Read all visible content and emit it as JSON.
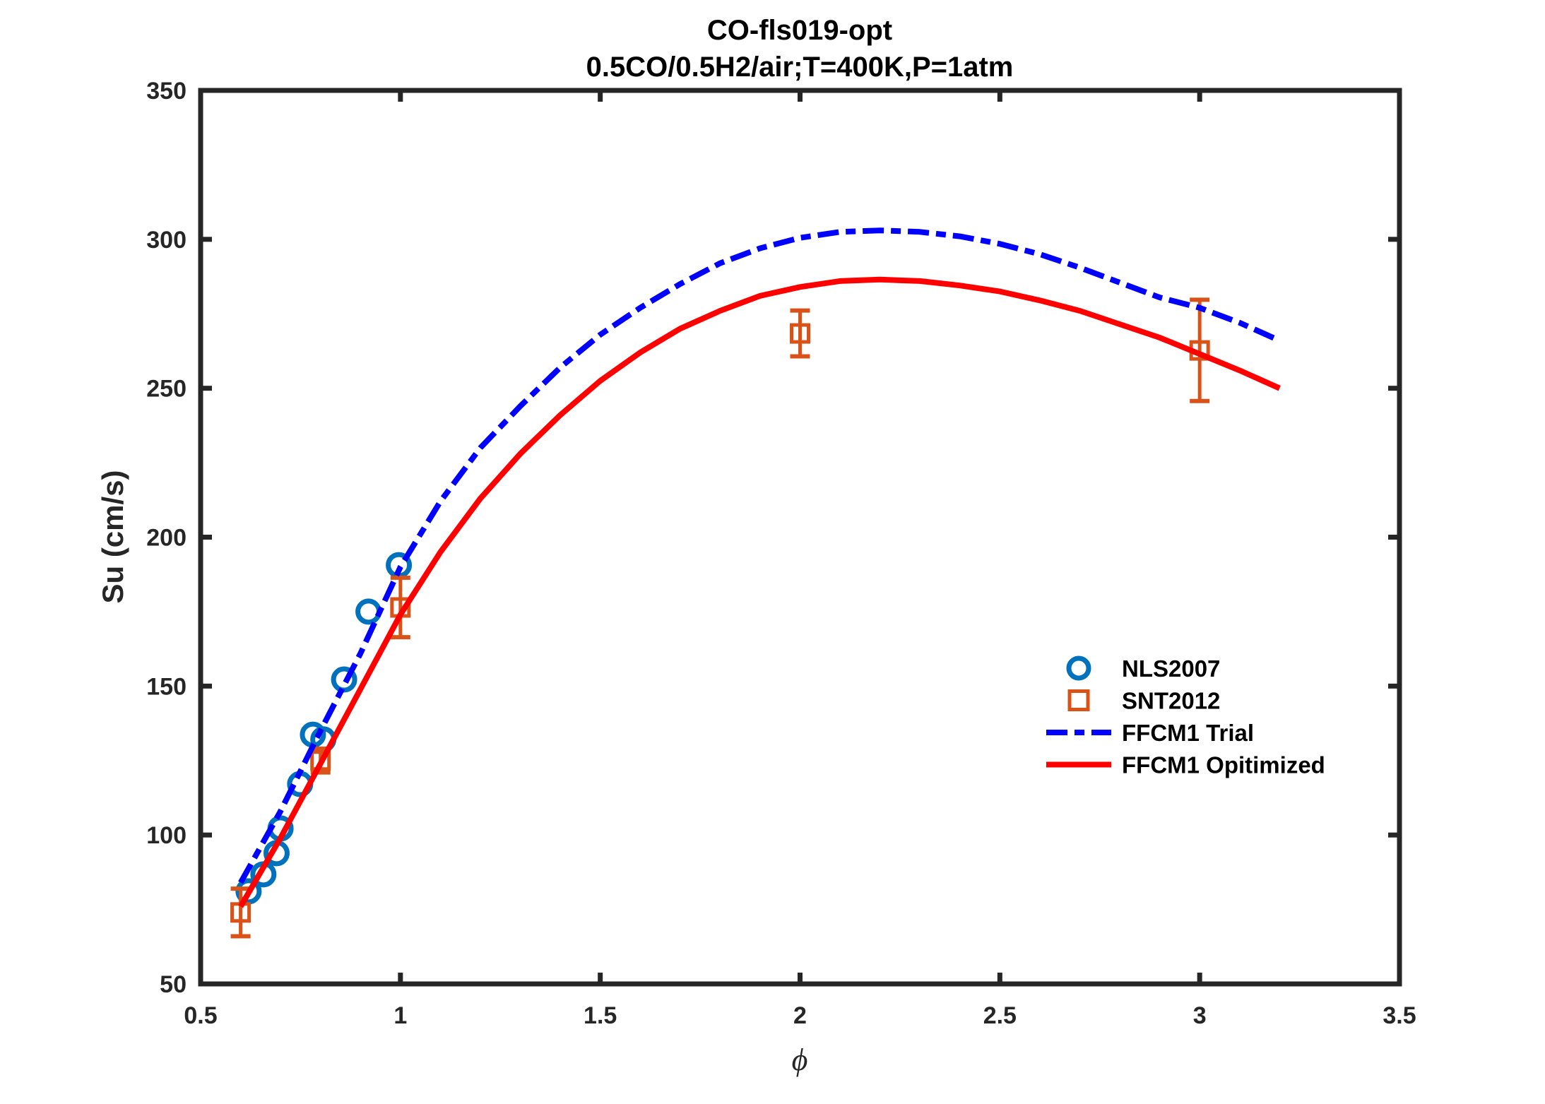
{
  "chart_data": {
    "type": "line",
    "title": "CO-fls019-opt",
    "subtitle": "0.5CO/0.5H2/air;T=400K,P=1atm",
    "xlabel": "ϕ",
    "ylabel": "Su (cm/s)",
    "xlim": [
      0.5,
      3.5
    ],
    "ylim": [
      50,
      350
    ],
    "xticks": [
      0.5,
      1,
      1.5,
      2,
      2.5,
      3,
      3.5
    ],
    "xtick_labels": [
      "0.5",
      "1",
      "1.5",
      "2",
      "2.5",
      "3",
      "3.5"
    ],
    "yticks": [
      50,
      100,
      150,
      200,
      250,
      300,
      350
    ],
    "ytick_labels": [
      "50",
      "100",
      "150",
      "200",
      "250",
      "300",
      "350"
    ],
    "grid": false,
    "legend_position": "center-right",
    "series": [
      {
        "name": "NLS2007",
        "kind": "scatter",
        "marker": "circle",
        "color": "#0072BD",
        "x": [
          0.62,
          0.657,
          0.69,
          0.7,
          0.749,
          0.781,
          0.807,
          0.859,
          0.92,
          0.996
        ],
        "y": [
          81.1,
          86.8,
          93.9,
          102.2,
          117.1,
          133.7,
          132.1,
          152.2,
          175.0,
          190.6
        ]
      },
      {
        "name": "SNT2012",
        "kind": "errorbar",
        "marker": "square",
        "color": "#D95319",
        "x": [
          0.6,
          0.8,
          1.0,
          2.0,
          3.0
        ],
        "y": [
          74.0,
          125.0,
          176.4,
          268.4,
          262.7
        ],
        "err": [
          8.0,
          4.0,
          10.0,
          7.7,
          17.0
        ]
      },
      {
        "name": "FFCM1 Trial",
        "kind": "line",
        "style": "dash-dot",
        "color": "#0000FF",
        "x": [
          0.6,
          0.7,
          0.8,
          0.9,
          1.0,
          1.1,
          1.2,
          1.3,
          1.4,
          1.5,
          1.6,
          1.7,
          1.8,
          1.9,
          2.0,
          2.1,
          2.2,
          2.3,
          2.4,
          2.5,
          2.6,
          2.7,
          2.8,
          2.9,
          3.0,
          3.1,
          3.2
        ],
        "y": [
          84,
          108,
          135,
          161,
          190,
          212,
          230,
          244,
          257,
          268,
          277,
          285,
          292,
          297,
          300.5,
          302.5,
          303,
          302.5,
          301,
          298.5,
          295,
          290.5,
          285.5,
          280.5,
          277,
          272,
          266
        ]
      },
      {
        "name": "FFCM1 Opitimized",
        "kind": "line",
        "style": "solid",
        "color": "#FF0000",
        "x": [
          0.6,
          0.7,
          0.8,
          0.9,
          1.0,
          1.1,
          1.2,
          1.3,
          1.4,
          1.5,
          1.6,
          1.7,
          1.8,
          1.9,
          2.0,
          2.1,
          2.2,
          2.3,
          2.4,
          2.5,
          2.6,
          2.7,
          2.8,
          2.9,
          3.0,
          3.1,
          3.2
        ],
        "y": [
          76,
          99,
          124,
          149,
          174,
          195,
          213,
          228,
          241,
          252.5,
          262,
          270,
          276,
          281,
          284,
          286,
          286.5,
          286,
          284.5,
          282.5,
          279.5,
          276,
          271.5,
          267,
          261.5,
          256,
          250
        ]
      }
    ],
    "legend": [
      {
        "label": "NLS2007",
        "symbol": "circle",
        "color": "#0072BD"
      },
      {
        "label": "SNT2012",
        "symbol": "square",
        "color": "#D95319"
      },
      {
        "label": "FFCM1 Trial",
        "symbol": "dash-dot",
        "color": "#0000FF"
      },
      {
        "label": "FFCM1 Opitimized",
        "symbol": "solid",
        "color": "#FF0000"
      }
    ],
    "axis_color": "#262626"
  }
}
